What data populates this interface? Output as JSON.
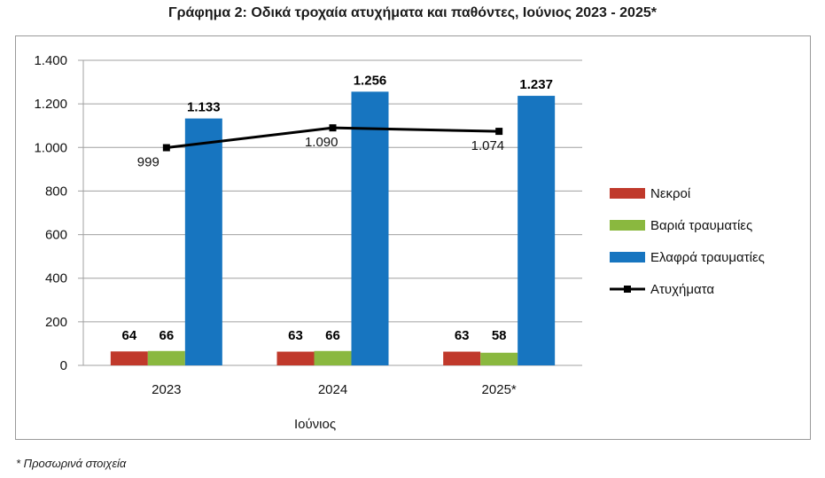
{
  "chart_data": {
    "type": "bar",
    "title": "Γράφημα 2: Οδικά τροχαία ατυχήματα και παθόντες, Ιούνιος 2023 - 2025*",
    "xlabel": "Ιούνιος",
    "ylabel": "",
    "ylim": [
      0,
      1400
    ],
    "yticks": [
      0,
      200,
      400,
      600,
      800,
      1000,
      1200,
      1400
    ],
    "ytick_labels": [
      "0",
      "200",
      "400",
      "600",
      "800",
      "1.000",
      "1.200",
      "1.400"
    ],
    "grid": true,
    "legend_position": "right",
    "categories": [
      "2023",
      "2024",
      "2025*"
    ],
    "series": [
      {
        "name": "Νεκροί",
        "kind": "bar",
        "color": "#c0392b",
        "values": [
          64,
          63,
          63
        ],
        "labels": [
          "64",
          "63",
          "63"
        ]
      },
      {
        "name": "Βαριά τραυματίες",
        "kind": "bar",
        "color": "#8ab83f",
        "values": [
          66,
          66,
          58
        ],
        "labels": [
          "66",
          "66",
          "58"
        ]
      },
      {
        "name": "Ελαφρά τραυματίες",
        "kind": "bar",
        "color": "#1775c0",
        "values": [
          1133,
          1256,
          1237
        ],
        "labels": [
          "1.133",
          "1.256",
          "1.237"
        ]
      },
      {
        "name": "Ατυχήματα",
        "kind": "line",
        "color": "#000000",
        "values": [
          999,
          1090,
          1074
        ],
        "labels": [
          "999",
          "1.090",
          "1.074"
        ]
      }
    ]
  },
  "footnote": "* Προσωρινά στοιχεία"
}
